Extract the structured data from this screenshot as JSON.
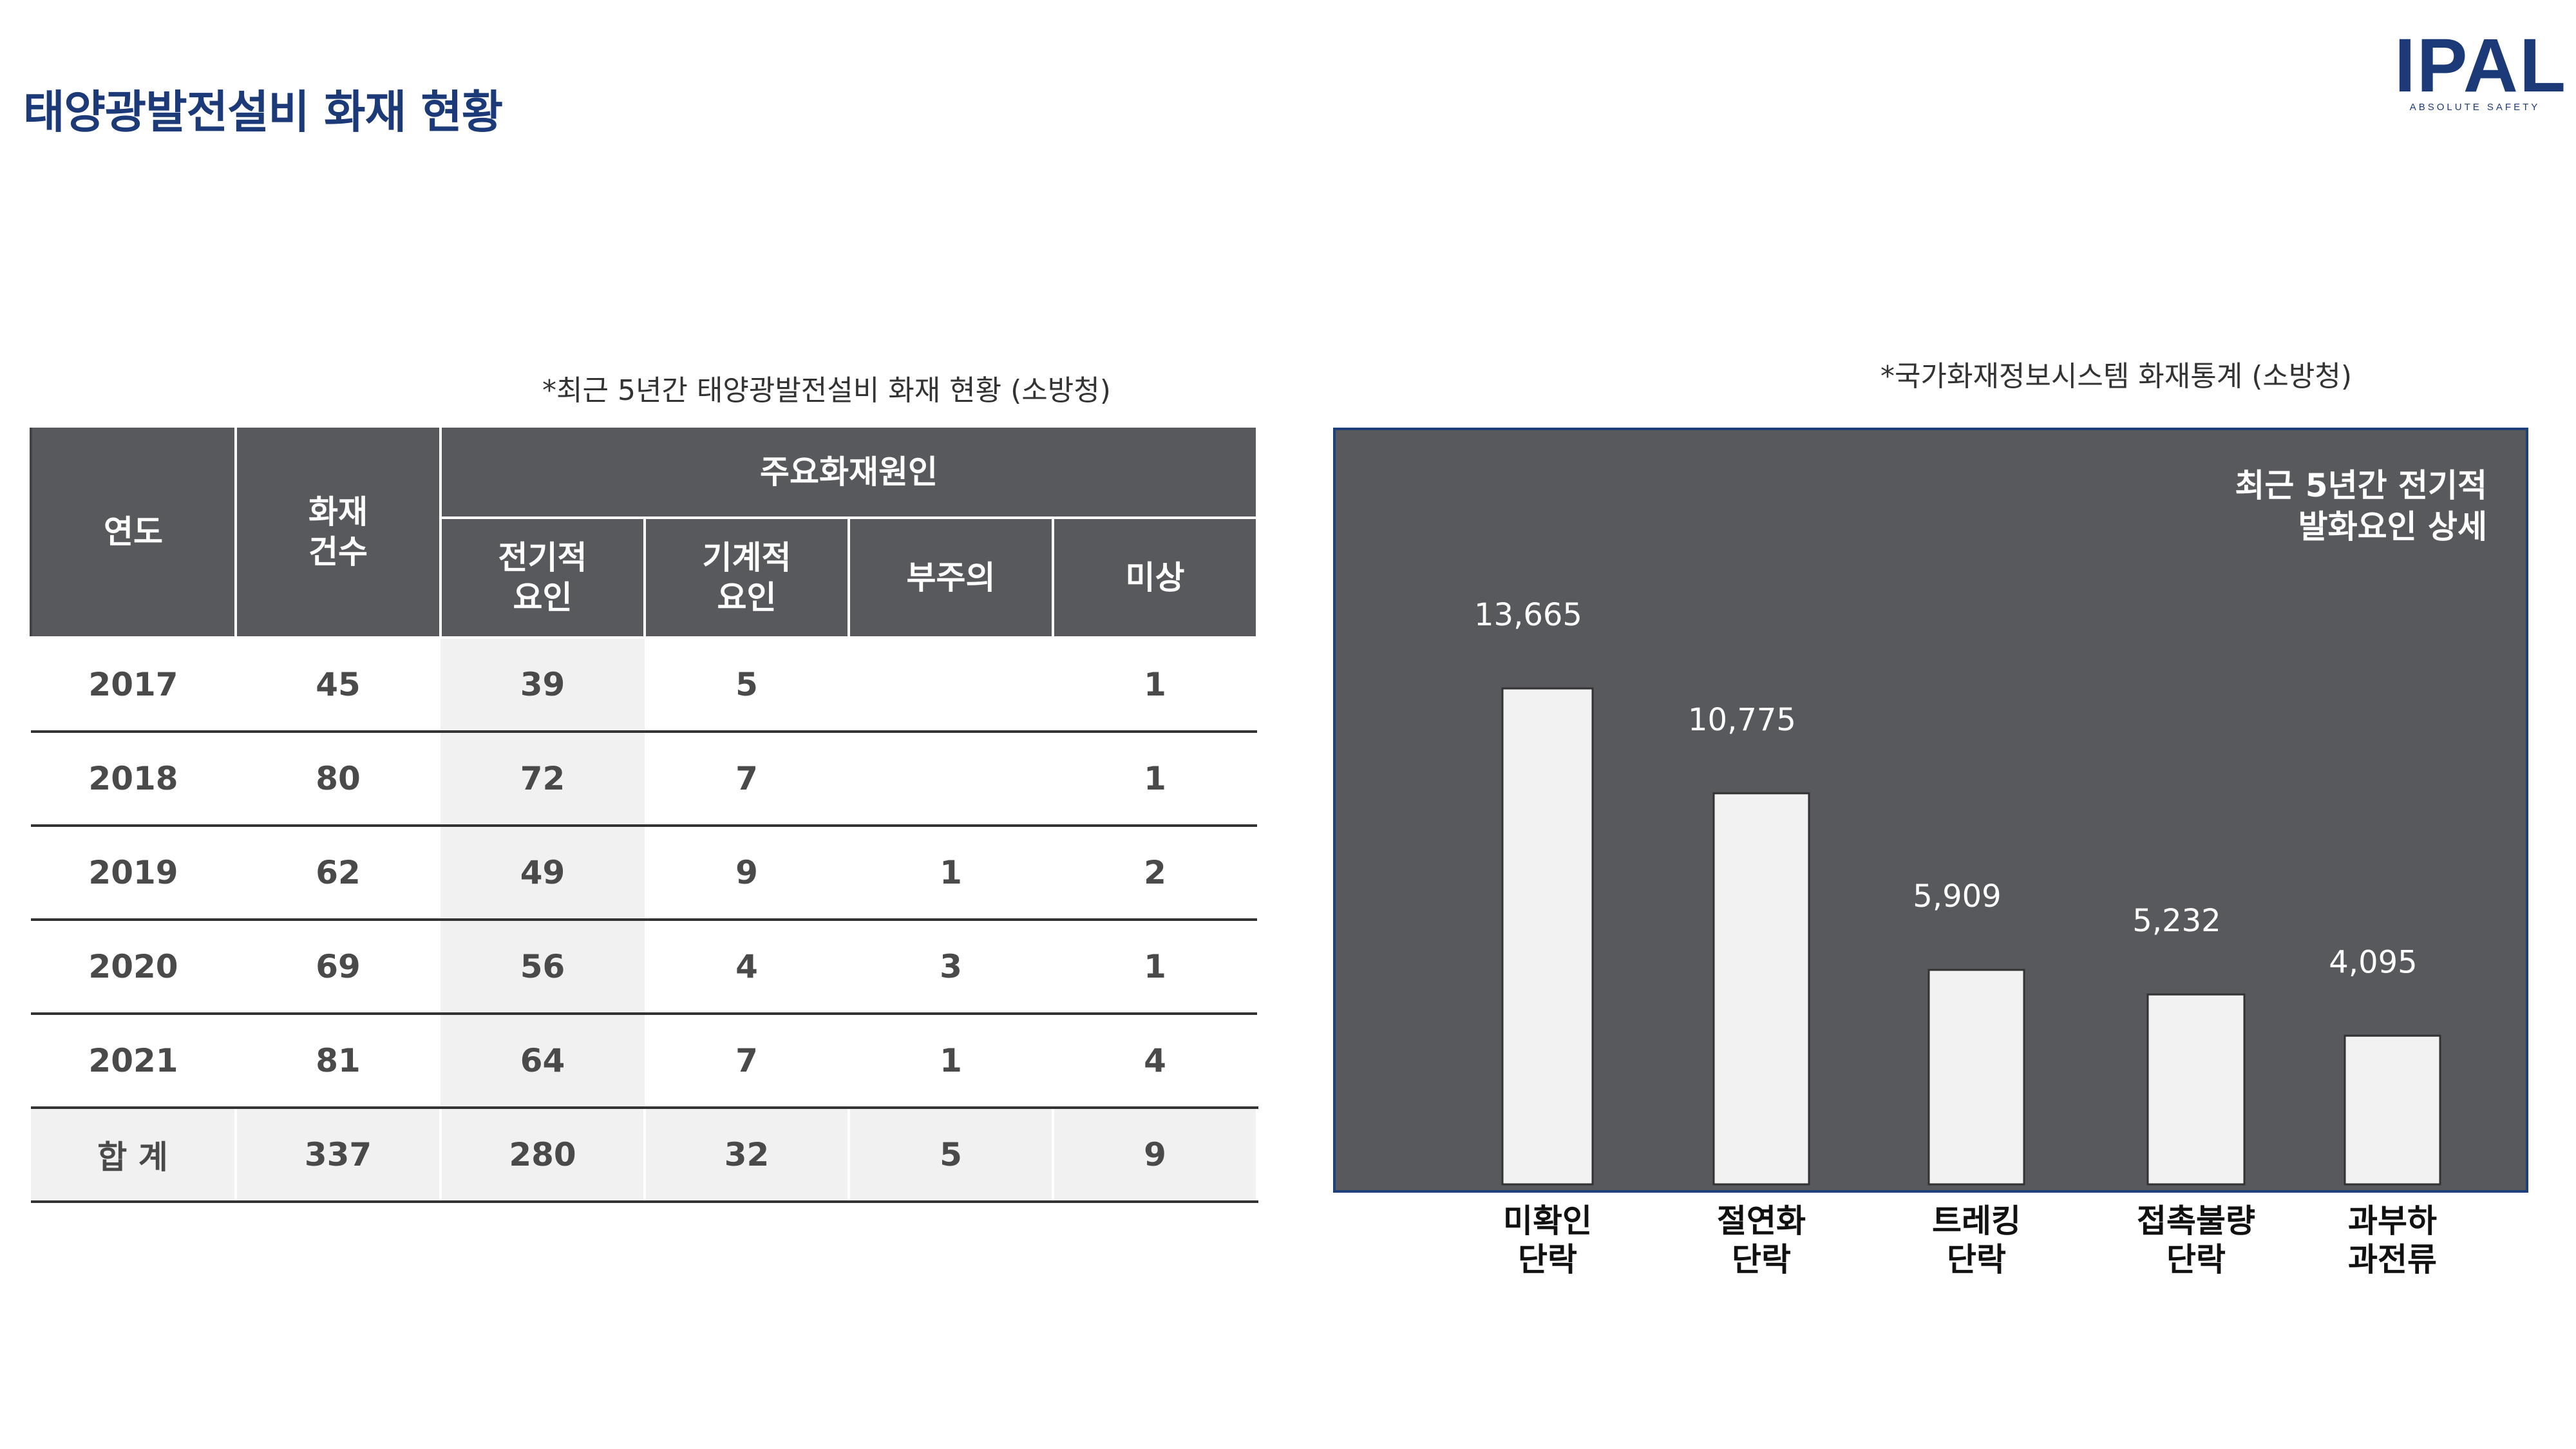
{
  "header": {
    "title": "태양광발전설비 화재 현황",
    "logo_text": "IPAL",
    "logo_subtext": "ABSOLUTE SAFETY"
  },
  "table_section": {
    "caption": "*최근 5년간 태양광발전설비 화재 현황 (소방청)",
    "headers": {
      "year": "연도",
      "fire_count": "화재\n건수",
      "main_causes": "주요화재원인",
      "electrical": "전기적\n요인",
      "mechanical": "기계적\n요인",
      "carelessness": "부주의",
      "unknown": "미상"
    },
    "rows": [
      {
        "year": "2017",
        "count": "45",
        "electrical": "39",
        "mechanical": "5",
        "carelessness": "",
        "unknown": "1"
      },
      {
        "year": "2018",
        "count": "80",
        "electrical": "72",
        "mechanical": "7",
        "carelessness": "",
        "unknown": "1"
      },
      {
        "year": "2019",
        "count": "62",
        "electrical": "49",
        "mechanical": "9",
        "carelessness": "1",
        "unknown": "2"
      },
      {
        "year": "2020",
        "count": "69",
        "electrical": "56",
        "mechanical": "4",
        "carelessness": "3",
        "unknown": "1"
      },
      {
        "year": "2021",
        "count": "81",
        "electrical": "64",
        "mechanical": "7",
        "carelessness": "1",
        "unknown": "4"
      }
    ],
    "total": {
      "label": "합 계",
      "count": "337",
      "electrical": "280",
      "mechanical": "32",
      "carelessness": "5",
      "unknown": "9"
    }
  },
  "chart_section": {
    "caption": "*국가화재정보시스템 화재통계 (소방청)",
    "colors": {
      "panel": "#58595c",
      "bar": "#f2f2f2",
      "border": "#1d3f7a"
    }
  },
  "chart_data": {
    "type": "bar",
    "title": "최근 5년간 전기적\n발화요인 상세",
    "categories": [
      "미확인\n단락",
      "절연화\n단락",
      "트레킹\n단락",
      "접촉불량\n단락",
      "과부하\n과전류"
    ],
    "values": [
      13665,
      10775,
      5909,
      5232,
      4095
    ],
    "value_labels": [
      "13,665",
      "10,775",
      "5,909",
      "5,232",
      "4,095"
    ],
    "ylim": [
      0,
      16000
    ],
    "grid": false,
    "legend": "none"
  }
}
